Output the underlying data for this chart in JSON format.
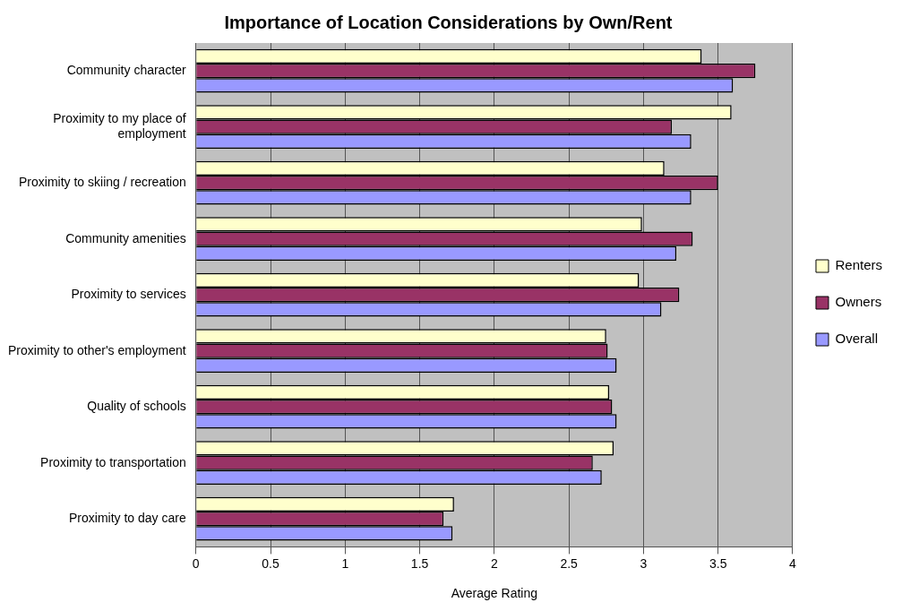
{
  "chart_data": {
    "type": "bar",
    "orientation": "horizontal",
    "title": "Importance of Location Considerations by Own/Rent",
    "xlabel": "Average Rating",
    "categories": [
      "Community character",
      "Proximity to my place of employment",
      "Proximity to skiing / recreation",
      "Community amenities",
      "Proximity to services",
      "Proximity to other's employment",
      "Quality of schools",
      "Proximity to transportation",
      "Proximity to day care"
    ],
    "series": [
      {
        "name": "Renters",
        "color": "#ffffcc",
        "values": [
          3.39,
          3.59,
          3.14,
          2.99,
          2.97,
          2.75,
          2.77,
          2.8,
          1.73
        ]
      },
      {
        "name": "Owners",
        "color": "#993366",
        "values": [
          3.75,
          3.19,
          3.5,
          3.33,
          3.24,
          2.76,
          2.79,
          2.66,
          1.66
        ]
      },
      {
        "name": "Overall",
        "color": "#9999ff",
        "values": [
          3.6,
          3.32,
          3.32,
          3.22,
          3.12,
          2.82,
          2.82,
          2.72,
          1.72
        ]
      }
    ],
    "xlim": [
      0,
      4
    ],
    "xticks": [
      0,
      0.5,
      1,
      1.5,
      2,
      2.5,
      3,
      3.5,
      4
    ],
    "grid": "x",
    "legend": "right"
  }
}
